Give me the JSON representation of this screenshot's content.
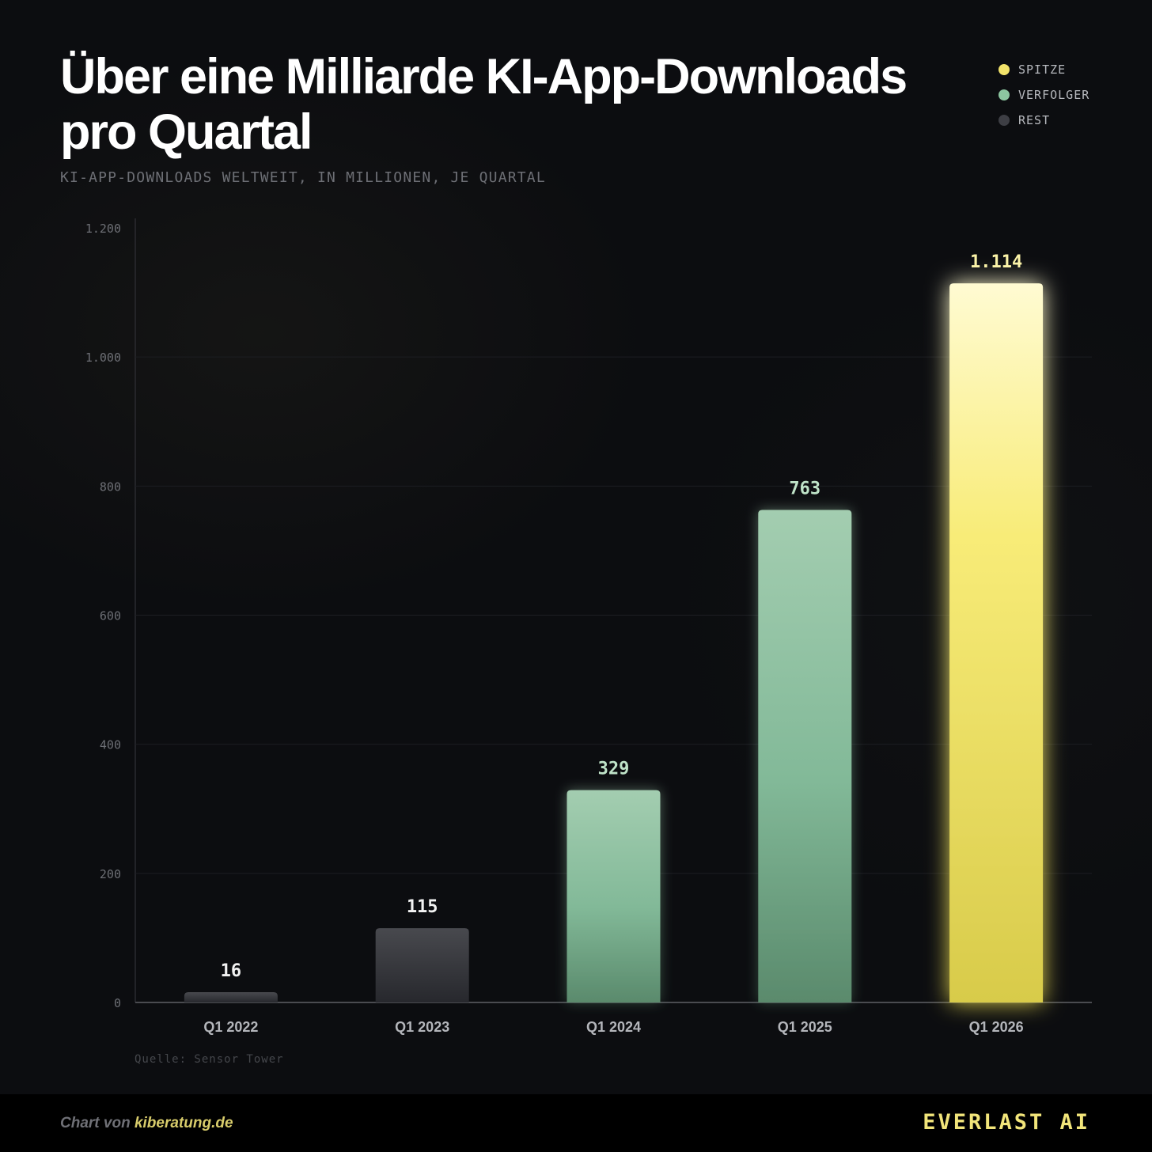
{
  "header": {
    "title": "Über eine Milliarde KI-App-Downloads pro Quartal",
    "subtitle": "KI-APP-DOWNLOADS WELTWEIT, IN MILLIONEN, JE QUARTAL"
  },
  "legend": [
    {
      "label": "SPITZE",
      "color": "#f2e36a"
    },
    {
      "label": "VERFOLGER",
      "color": "#8cc6a0"
    },
    {
      "label": "REST",
      "color": "#3d3e44"
    }
  ],
  "chart_data": {
    "type": "bar",
    "title": "Über eine Milliarde KI-App-Downloads pro Quartal",
    "subtitle": "KI-APP-DOWNLOADS WELTWEIT, IN MILLIONEN, JE QUARTAL",
    "categories": [
      "Q1 2022",
      "Q1 2023",
      "Q1 2024",
      "Q1 2025",
      "Q1 2026"
    ],
    "values": [
      16,
      115,
      329,
      763,
      1114
    ],
    "value_labels": [
      "16",
      "115",
      "329",
      "763",
      "1.114"
    ],
    "groups": [
      "REST",
      "REST",
      "VERFOLGER",
      "VERFOLGER",
      "SPITZE"
    ],
    "ylim": [
      0,
      1200
    ],
    "yticks": [
      0,
      200,
      400,
      600,
      800,
      1000,
      1200
    ],
    "ytick_labels": [
      "0",
      "200",
      "400",
      "600",
      "800",
      "1.000",
      "1.200"
    ],
    "xlabel": "",
    "ylabel": "",
    "grid": true,
    "legend_position": "top-right"
  },
  "source": "Quelle: Sensor Tower",
  "footer": {
    "credit_prefix": "Chart von ",
    "credit_site": "kiberatung.de",
    "brand": "EVERLAST AI"
  }
}
